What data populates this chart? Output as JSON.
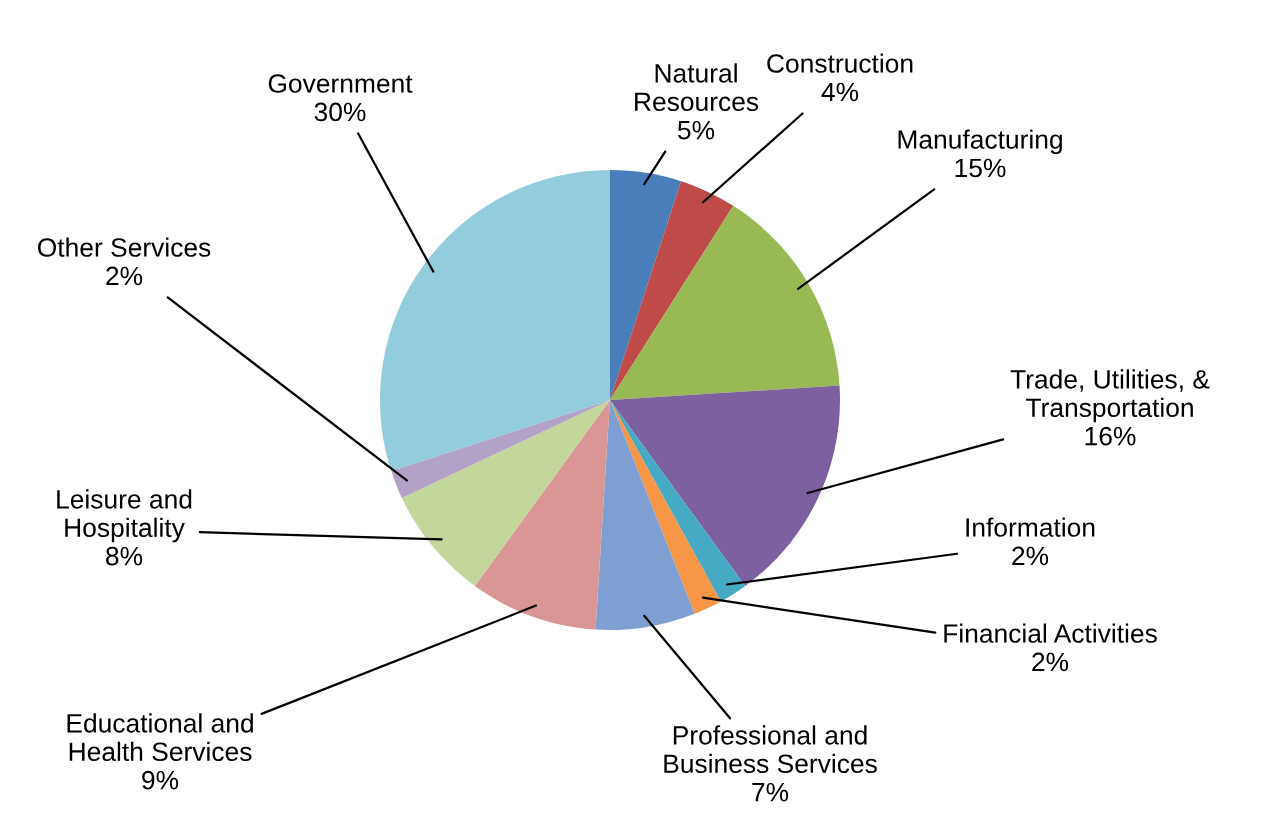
{
  "chart_data": {
    "type": "pie",
    "categories": [
      "Natural\nResources",
      "Construction",
      "Manufacturing",
      "Trade, Utilities, &\nTransportation",
      "Information",
      "Financial Activities",
      "Professional and\nBusiness Services",
      "Educational and\nHealth Services",
      "Leisure and\nHospitality",
      "Other Services",
      "Government"
    ],
    "values": [
      5,
      4,
      15,
      16,
      2,
      2,
      7,
      9,
      8,
      2,
      30
    ],
    "value_labels": [
      "5%",
      "4%",
      "15%",
      "16%",
      "2%",
      "2%",
      "7%",
      "9%",
      "8%",
      "2%",
      "30%"
    ],
    "colors": [
      "#4a7ebb",
      "#be4b48",
      "#98b954",
      "#7d60a0",
      "#46aac5",
      "#f79646",
      "#7f9fd3",
      "#d99694",
      "#c3d69b",
      "#b3a2c7",
      "#93cddd"
    ]
  }
}
